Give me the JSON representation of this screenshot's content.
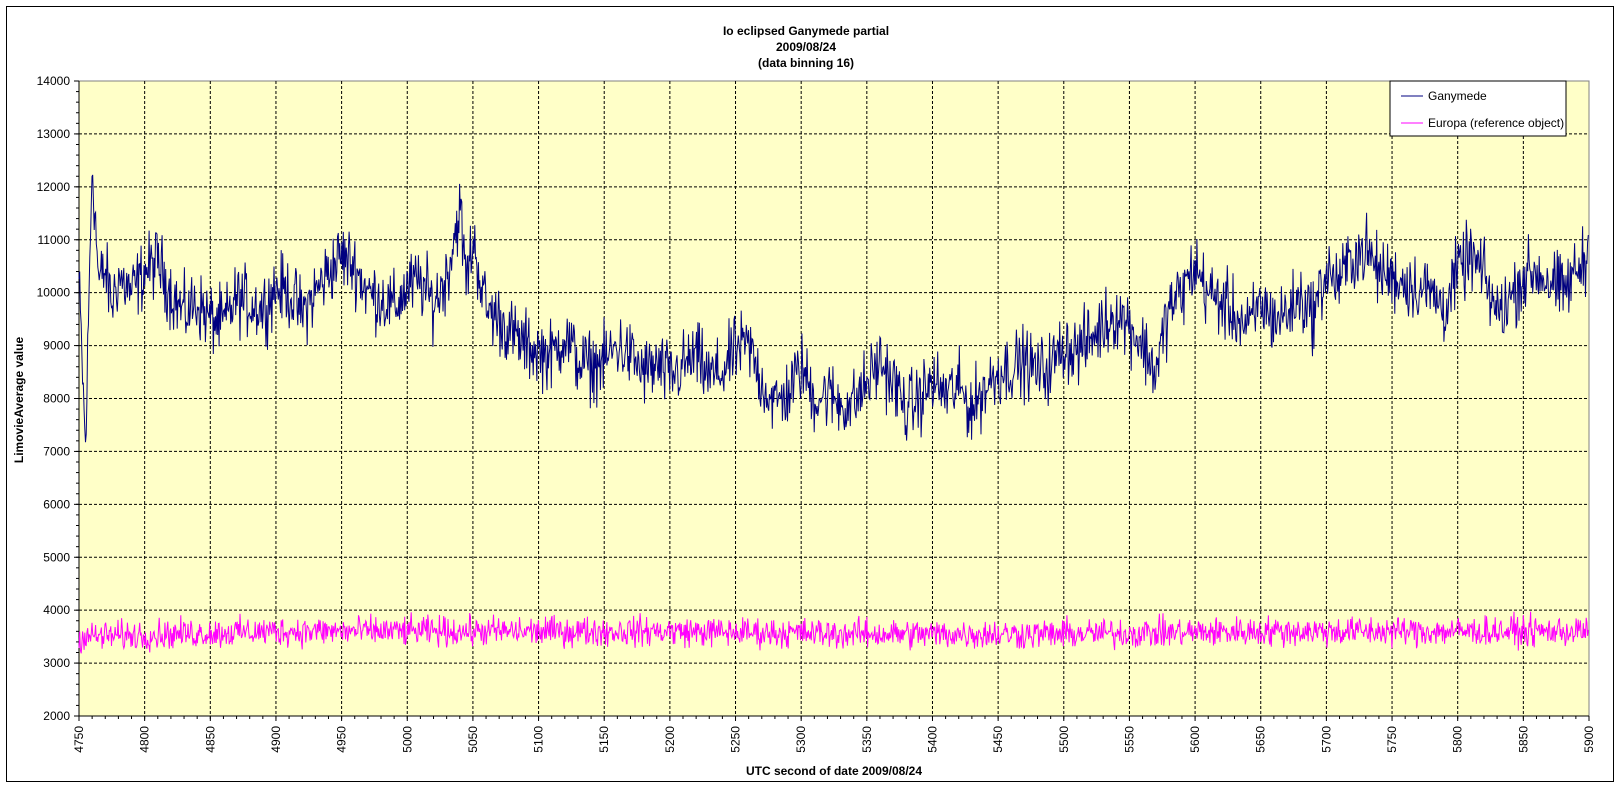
{
  "chart_data": {
    "type": "line",
    "title_lines": [
      "Io eclipsed Ganymede partial",
      "2009/08/24",
      "(data binning 16)"
    ],
    "xlabel": "UTC second  of date 2009/08/24",
    "ylabel": "LimovieAverage value",
    "xlim": [
      4750,
      5900
    ],
    "ylim": [
      2000,
      14000
    ],
    "x_ticks": [
      4750,
      4800,
      4850,
      4900,
      4950,
      5000,
      5050,
      5100,
      5150,
      5200,
      5250,
      5300,
      5350,
      5400,
      5450,
      5500,
      5550,
      5600,
      5650,
      5700,
      5750,
      5800,
      5850,
      5900
    ],
    "y_ticks": [
      2000,
      3000,
      4000,
      5000,
      6000,
      7000,
      8000,
      9000,
      10000,
      11000,
      12000,
      13000,
      14000
    ],
    "grid": true,
    "legend_position": "top-right",
    "series": [
      {
        "name": "Ganymede",
        "color": "#000080",
        "x": [
          4750,
          4755,
          4760,
          4765,
          4770,
          4775,
          4780,
          4790,
          4800,
          4810,
          4820,
          4830,
          4840,
          4850,
          4860,
          4870,
          4880,
          4890,
          4900,
          4910,
          4920,
          4930,
          4940,
          4950,
          4960,
          4970,
          4980,
          4990,
          5000,
          5010,
          5020,
          5030,
          5040,
          5045,
          5050,
          5060,
          5070,
          5080,
          5090,
          5100,
          5110,
          5120,
          5130,
          5140,
          5150,
          5160,
          5170,
          5180,
          5190,
          5200,
          5210,
          5220,
          5230,
          5240,
          5250,
          5260,
          5270,
          5280,
          5290,
          5300,
          5310,
          5320,
          5330,
          5340,
          5350,
          5360,
          5370,
          5380,
          5390,
          5400,
          5410,
          5420,
          5430,
          5440,
          5450,
          5460,
          5470,
          5480,
          5490,
          5500,
          5510,
          5520,
          5530,
          5540,
          5550,
          5560,
          5570,
          5580,
          5590,
          5600,
          5610,
          5620,
          5630,
          5640,
          5650,
          5660,
          5670,
          5680,
          5690,
          5700,
          5710,
          5720,
          5730,
          5740,
          5750,
          5760,
          5770,
          5780,
          5790,
          5800,
          5810,
          5820,
          5830,
          5840,
          5850,
          5860,
          5870,
          5880,
          5890,
          5900
        ],
        "values": [
          10200,
          7000,
          12500,
          10200,
          10400,
          9800,
          10300,
          10000,
          10400,
          10600,
          10000,
          9600,
          9800,
          9500,
          9400,
          9900,
          9800,
          9700,
          10100,
          10000,
          9600,
          10000,
          10400,
          10700,
          10500,
          10000,
          9900,
          9700,
          10100,
          10200,
          9800,
          10300,
          11600,
          10200,
          11000,
          9700,
          9500,
          9200,
          9000,
          8900,
          8800,
          9200,
          8700,
          8600,
          8700,
          9000,
          8800,
          8500,
          8600,
          8400,
          8600,
          8800,
          8400,
          8500,
          8900,
          9000,
          8300,
          7900,
          8100,
          8600,
          8000,
          8100,
          7900,
          7900,
          8300,
          8700,
          8300,
          7800,
          8000,
          8300,
          8100,
          8200,
          7800,
          8200,
          8500,
          8600,
          8700,
          8500,
          8600,
          9000,
          8900,
          9100,
          9400,
          9600,
          9400,
          9000,
          8500,
          9700,
          10000,
          10500,
          10000,
          9800,
          9600,
          9300,
          9800,
          9500,
          9600,
          9900,
          9600,
          10400,
          10200,
          10700,
          10800,
          10400,
          10300,
          10200,
          10100,
          10000,
          9700,
          10400,
          10700,
          10300,
          9600,
          9900,
          10300,
          10400,
          10200,
          10000,
          10400,
          10700
        ],
        "amplitude": 750
      },
      {
        "name": "Europa (reference object)",
        "color": "#ff00ff",
        "x": [
          4750,
          4900,
          5050,
          5200,
          5350,
          5500,
          5650,
          5800,
          5900
        ],
        "values": [
          3500,
          3600,
          3600,
          3600,
          3550,
          3550,
          3600,
          3600,
          3600
        ],
        "amplitude": 320
      }
    ]
  }
}
